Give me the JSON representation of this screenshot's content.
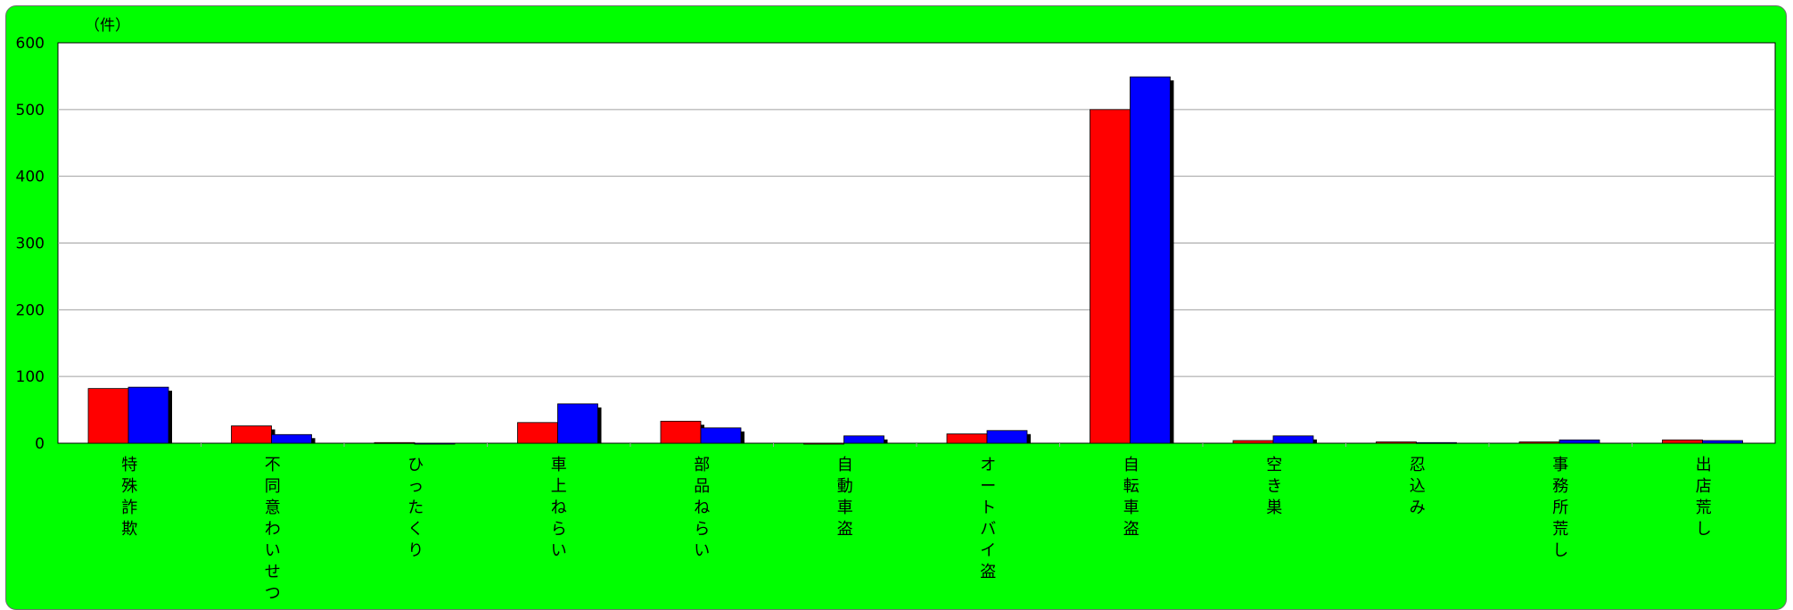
{
  "chart_data": {
    "type": "bar",
    "unit_label": "（件）",
    "categories": [
      "特殊詐欺",
      "不同意わいせつ",
      "ひったくり",
      "車上ねらい",
      "部品ねらい",
      "自動車盗",
      "オートバイ盗",
      "自転車盗",
      "空き巣",
      "忍込み",
      "事務所荒し",
      "出店荒し"
    ],
    "series": [
      {
        "values": [
          82,
          26,
          1,
          31,
          33,
          0,
          14,
          500,
          4,
          2,
          2,
          5
        ]
      },
      {
        "values": [
          84,
          13,
          0,
          59,
          23,
          11,
          19,
          549,
          11,
          1,
          5,
          4
        ]
      }
    ],
    "ylim": [
      0,
      600
    ],
    "yticks": [
      0,
      100,
      200,
      300,
      400,
      500,
      600
    ],
    "grid": true,
    "colors": {
      "background": "#00ff00",
      "plot_area": "#ffffff",
      "series_1": "#ff0000",
      "series_2": "#0000ff",
      "shadow": "#000000",
      "gridline": "#a0a0a0"
    }
  }
}
